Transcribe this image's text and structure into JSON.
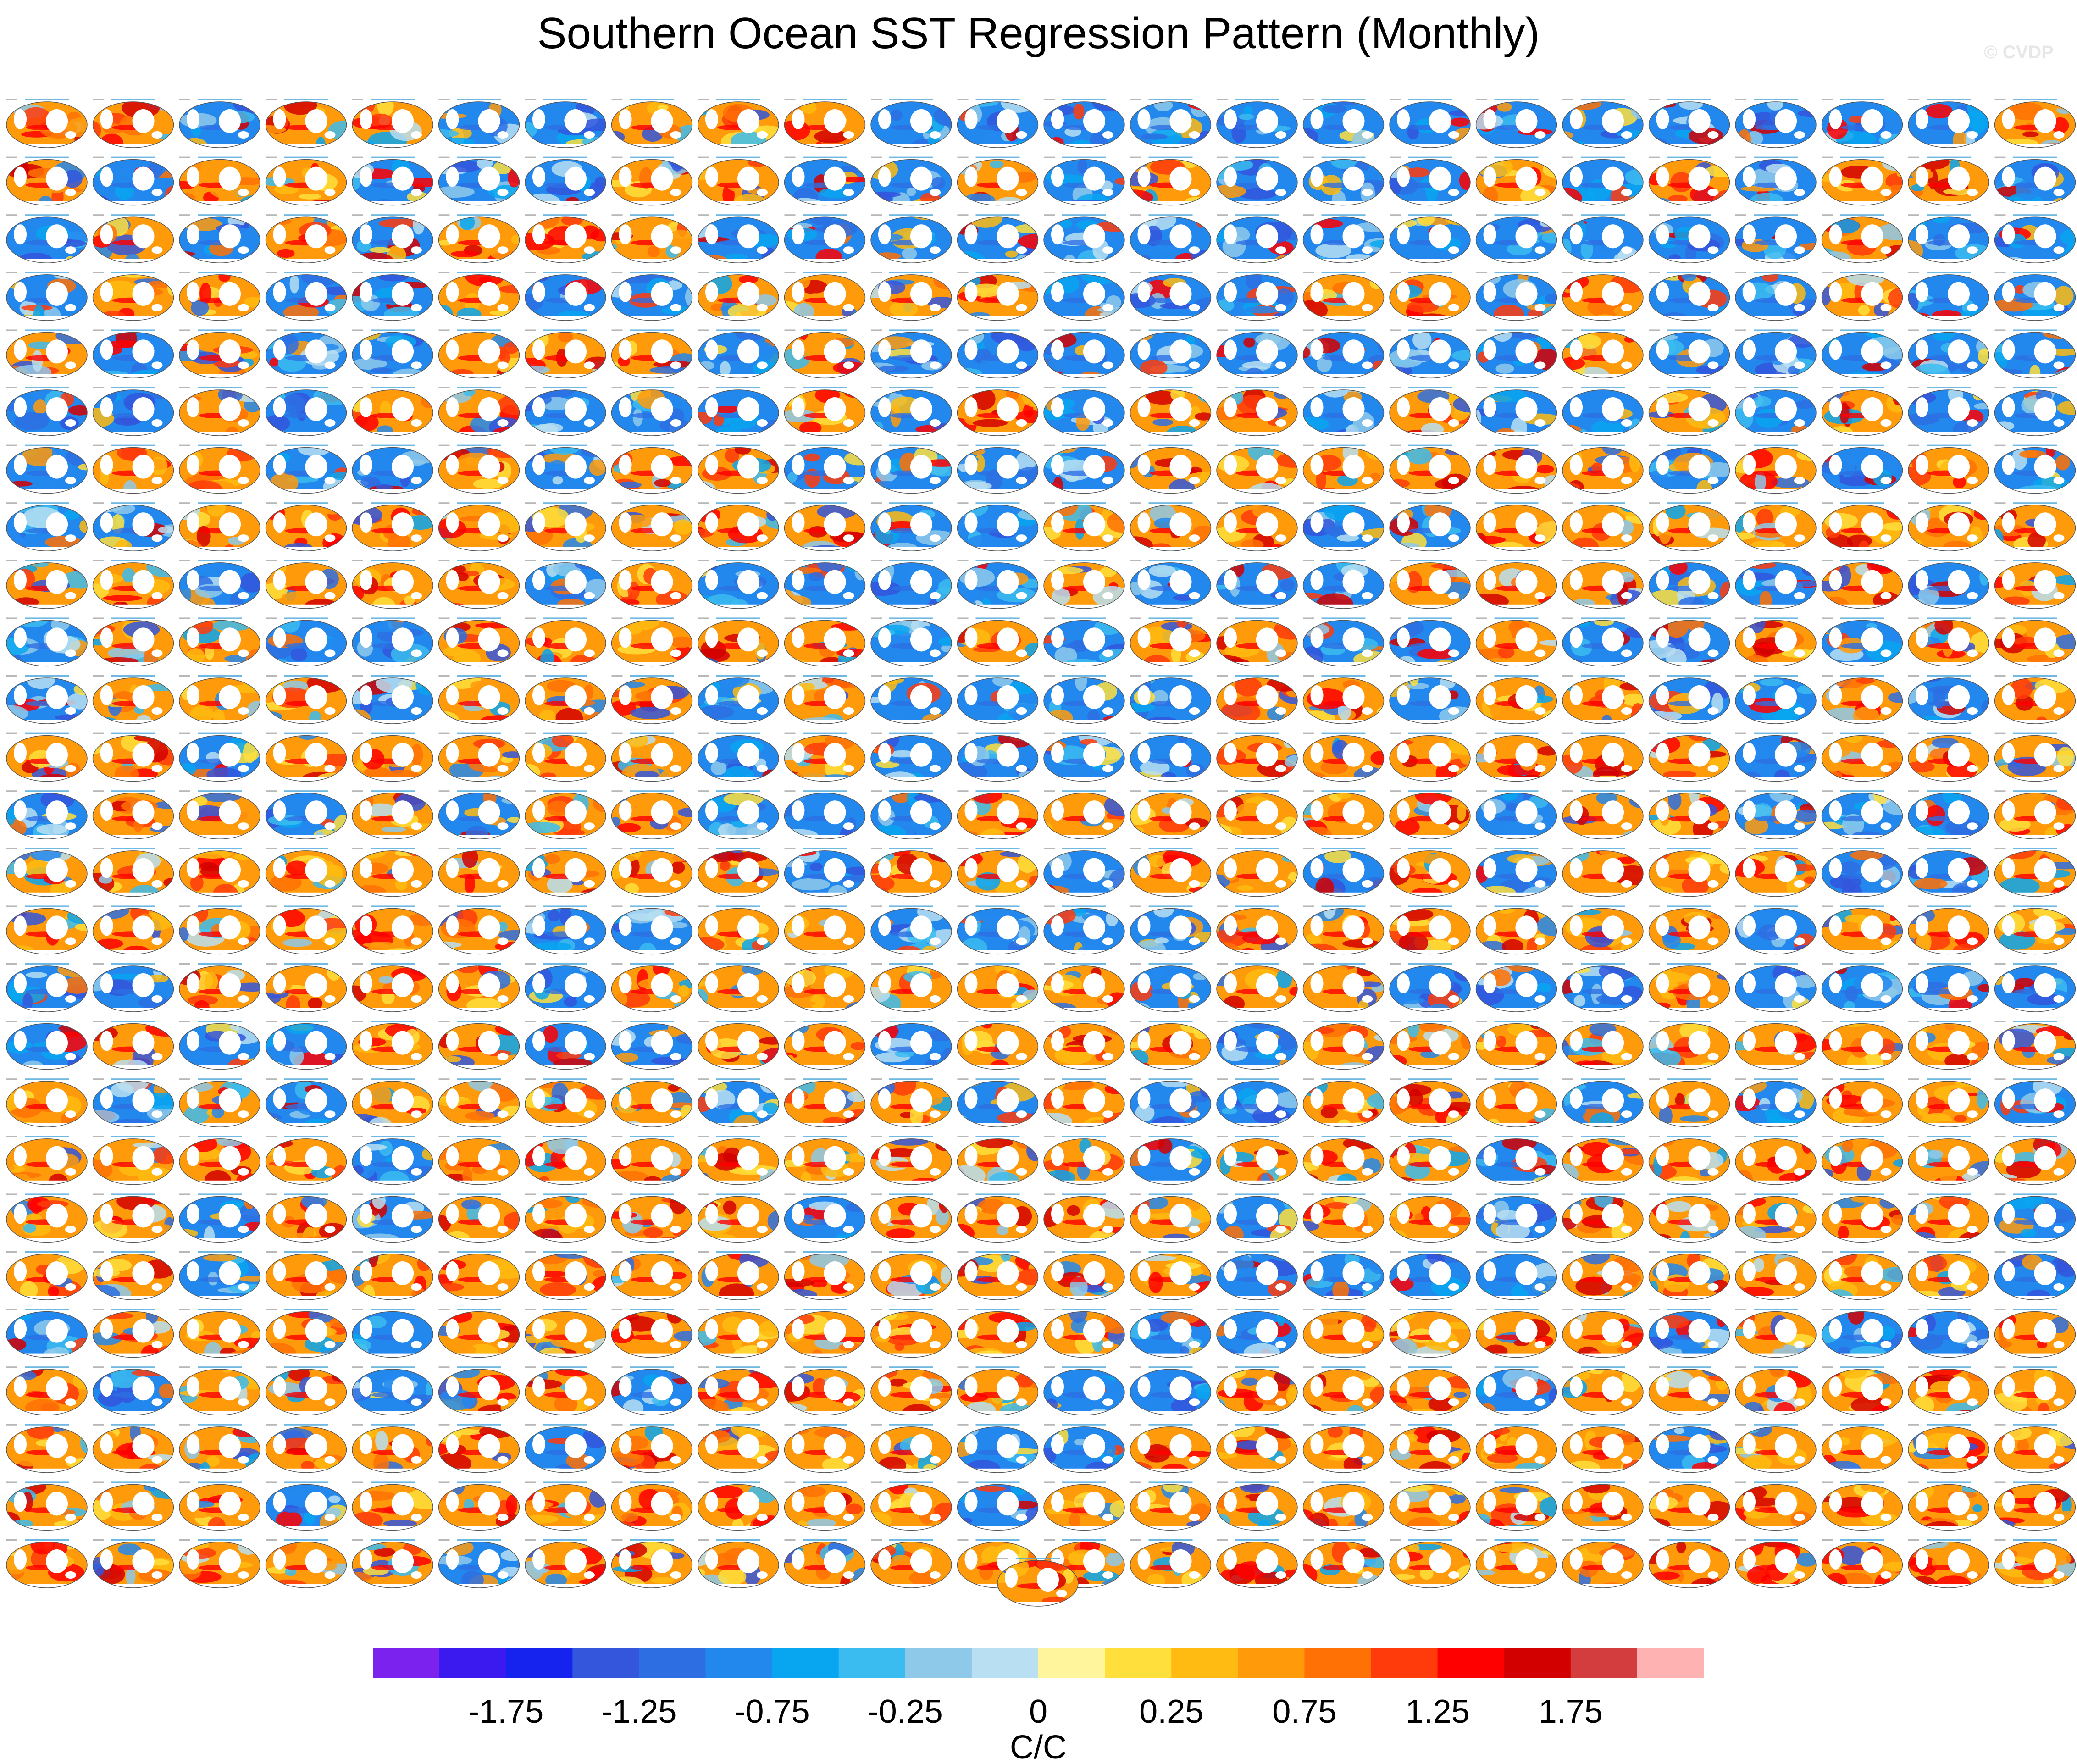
{
  "figure": {
    "title": "Southern Ocean SST Regression Pattern (Monthly)",
    "watermark": "© CVDP"
  },
  "grid": {
    "rows": 26,
    "cols": 24,
    "extra_panels": 1
  },
  "colorbar": {
    "colors": [
      "#7b22ee",
      "#3a1aee",
      "#1623ee",
      "#3356dc",
      "#2d6fe3",
      "#2388ee",
      "#08a6f0",
      "#3bbcf0",
      "#8ec9ea",
      "#b9dff2",
      "#fff59c",
      "#ffdf3c",
      "#ffbb11",
      "#ff9b0a",
      "#ff7105",
      "#ff3b0b",
      "#fe0000",
      "#d30000",
      "#d43d3d",
      "#ffb2b2"
    ],
    "tick_labels": [
      "-1.75",
      "-1.25",
      "-0.75",
      "-0.25",
      "0",
      "0.25",
      "0.75",
      "1.25",
      "1.75"
    ],
    "units": "C/C"
  }
}
